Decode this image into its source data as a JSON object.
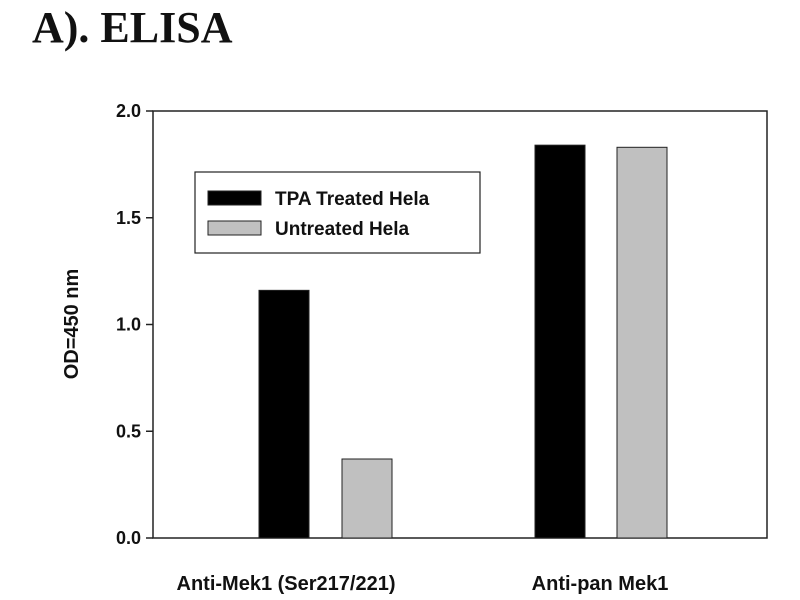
{
  "title": "A). ELISA",
  "chart_data": {
    "type": "bar",
    "title": "A). ELISA",
    "xlabel": "",
    "ylabel": "OD=450 nm",
    "ylim": [
      0,
      2.0
    ],
    "yticks": [
      "0.0",
      "0.5",
      "1.0",
      "1.5",
      "2.0"
    ],
    "categories": [
      "Anti-Mek1 (Ser217/221)",
      "Anti-pan Mek1"
    ],
    "series": [
      {
        "name": "TPA Treated Hela",
        "color": "#000000",
        "values": [
          1.16,
          1.84
        ]
      },
      {
        "name": "Untreated Hela",
        "color": "#c0c0c0",
        "values": [
          0.37,
          1.83
        ]
      }
    ],
    "legend": "top-left",
    "grid": false
  }
}
